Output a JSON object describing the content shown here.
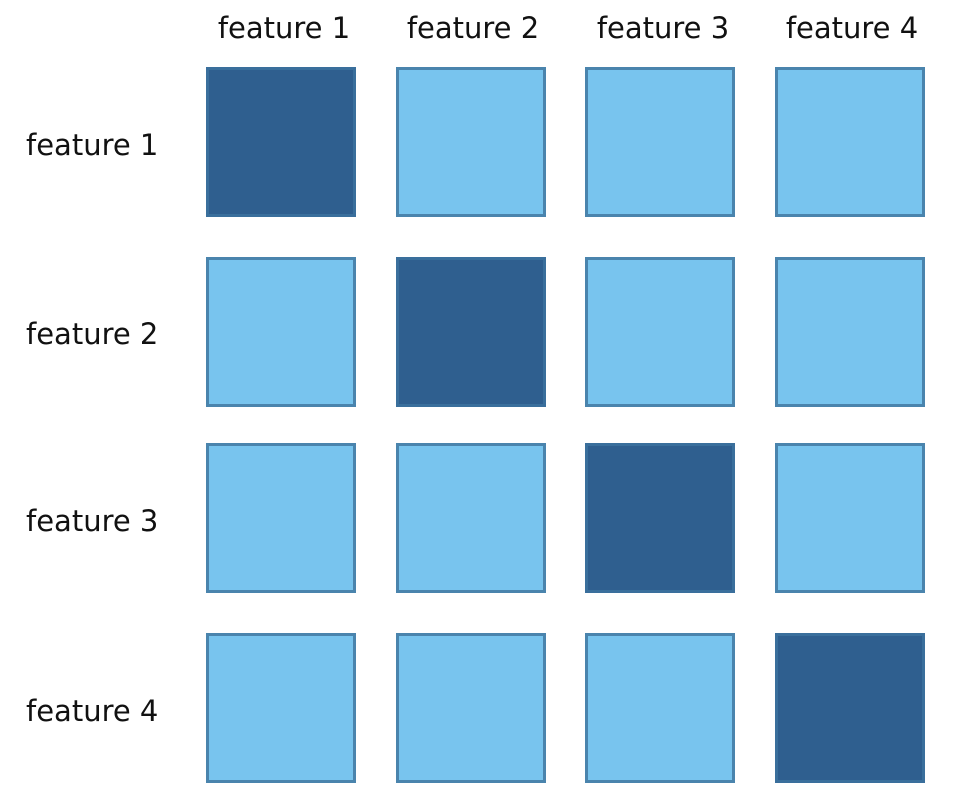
{
  "matrix": {
    "col_labels": [
      "feature 1",
      "feature 2",
      "feature 3",
      "feature 4"
    ],
    "row_labels": [
      "feature 1",
      "feature 2",
      "feature 3",
      "feature 4"
    ],
    "cells": [
      [
        1,
        0,
        0,
        0
      ],
      [
        0,
        1,
        0,
        0
      ],
      [
        0,
        0,
        1,
        0
      ],
      [
        0,
        0,
        0,
        1
      ]
    ],
    "colors": {
      "active": "#2f5f8f",
      "inactive": "#78c4ee",
      "border": "#4a84ad"
    }
  }
}
